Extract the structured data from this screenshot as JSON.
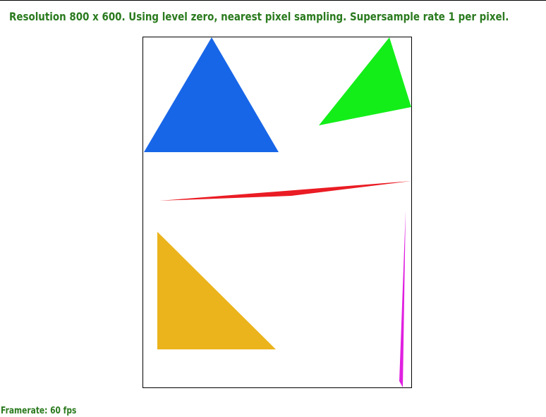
{
  "status": {
    "title": "Resolution 800 x 600. Using level zero, nearest pixel sampling. Supersample rate 1 per pixel.",
    "framerate": "Framerate: 60 fps"
  },
  "colors": {
    "text": "#2a7a1e",
    "blue_triangle": "#1866e8",
    "green_triangle": "#13ee19",
    "red_triangle": "#ea1c24",
    "magenta_triangle": "#e020e0",
    "yellow_triangle": "#ebb41c",
    "frame": "#000000"
  }
}
